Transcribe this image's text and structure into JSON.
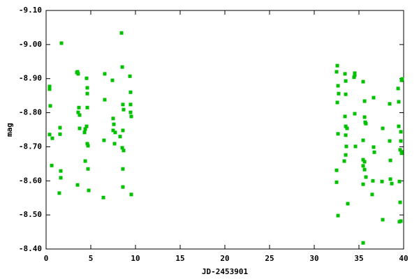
{
  "chart_data": {
    "type": "scatter",
    "x_label": "JD-2453901",
    "y_label": "mag",
    "color": "#00c000",
    "xlim": [
      0,
      40
    ],
    "xticks": [
      0,
      5,
      10,
      15,
      20,
      25,
      30,
      35,
      40
    ],
    "ylim": [
      -8.4,
      -9.1
    ],
    "yticks": [
      {
        "value": -9.1,
        "label": "-9.10"
      },
      {
        "value": -9.0,
        "label": "-9.00"
      },
      {
        "value": -8.9,
        "label": "-8.90"
      },
      {
        "value": -8.8,
        "label": "-8.80"
      },
      {
        "value": -8.7,
        "label": "-8.70"
      },
      {
        "value": -8.6,
        "label": "-8.60"
      },
      {
        "value": -8.5,
        "label": "-8.50"
      },
      {
        "value": -8.4,
        "label": "-8.40"
      }
    ],
    "grid": false,
    "x": [
      0.39,
      0.39,
      0.47,
      0.39,
      0.7,
      0.63,
      1.56,
      1.56,
      1.72,
      1.64,
      1.64,
      1.48,
      3.44,
      3.59,
      3.52,
      3.59,
      3.67,
      3.75,
      3.75,
      3.52,
      4.38,
      4.53,
      4.3,
      4.53,
      4.61,
      4.61,
      4.61,
      4.61,
      4.69,
      4.38,
      4.69,
      4.77,
      6.41,
      6.48,
      6.56,
      6.56,
      7.42,
      7.5,
      7.58,
      7.5,
      7.73,
      7.66,
      8.28,
      8.44,
      8.52,
      8.59,
      8.67,
      8.59,
      8.52,
      8.67,
      8.59,
      8.59,
      9.38,
      9.45,
      9.45,
      9.45,
      9.53,
      9.53,
      32.58,
      32.5,
      32.66,
      32.73,
      32.58,
      32.5,
      32.5,
      32.66,
      32.66,
      33.44,
      33.52,
      33.52,
      33.44,
      33.52,
      33.67,
      33.52,
      33.59,
      33.52,
      33.36,
      33.75,
      34.53,
      34.53,
      34.45,
      34.53,
      34.61,
      35.47,
      35.63,
      35.63,
      35.7,
      35.78,
      35.47,
      35.63,
      35.47,
      35.47,
      35.63,
      35.47,
      35.78,
      35.47,
      36.64,
      36.64,
      36.72,
      36.56,
      36.48,
      37.66,
      37.58,
      37.66,
      38.44,
      38.44,
      38.52,
      38.52,
      38.67,
      39.38,
      39.45,
      39.45,
      39.61,
      39.69,
      39.69,
      39.77,
      39.77,
      39.77,
      39.84,
      39.53,
      39.61,
      39.53,
      39.69
    ],
    "values": [
      -8.877,
      -8.869,
      -8.82,
      -8.736,
      -8.725,
      -8.645,
      -8.756,
      -8.737,
      -9.004,
      -8.629,
      -8.609,
      -8.564,
      -8.918,
      -8.914,
      -8.92,
      -8.801,
      -8.815,
      -8.793,
      -8.754,
      -8.588,
      -8.752,
      -8.76,
      -8.742,
      -8.901,
      -8.873,
      -8.856,
      -8.815,
      -8.709,
      -8.703,
      -8.658,
      -8.635,
      -8.572,
      -8.551,
      -8.719,
      -8.914,
      -8.838,
      -8.895,
      -8.783,
      -8.766,
      -8.748,
      -8.742,
      -8.709,
      -8.73,
      -9.034,
      -8.934,
      -8.824,
      -8.809,
      -8.748,
      -8.697,
      -8.689,
      -8.635,
      -8.582,
      -8.907,
      -8.86,
      -8.824,
      -8.801,
      -8.789,
      -8.56,
      -8.938,
      -8.92,
      -8.879,
      -8.856,
      -8.83,
      -8.631,
      -8.596,
      -8.738,
      -8.498,
      -8.914,
      -8.893,
      -8.854,
      -8.789,
      -8.76,
      -8.754,
      -8.734,
      -8.701,
      -8.676,
      -8.658,
      -8.533,
      -8.916,
      -8.91,
      -8.904,
      -8.797,
      -8.701,
      -8.891,
      -8.834,
      -8.787,
      -8.772,
      -8.768,
      -8.719,
      -8.656,
      -8.662,
      -8.644,
      -8.633,
      -8.59,
      -8.611,
      -8.418,
      -8.844,
      -8.699,
      -8.684,
      -8.6,
      -8.56,
      -8.754,
      -8.598,
      -8.486,
      -8.826,
      -8.717,
      -8.66,
      -8.605,
      -8.592,
      -8.871,
      -8.832,
      -8.76,
      -8.691,
      -8.744,
      -8.717,
      -8.685,
      -8.681,
      -8.895,
      -8.899,
      -8.598,
      -8.537,
      -8.48,
      -8.482
    ]
  }
}
